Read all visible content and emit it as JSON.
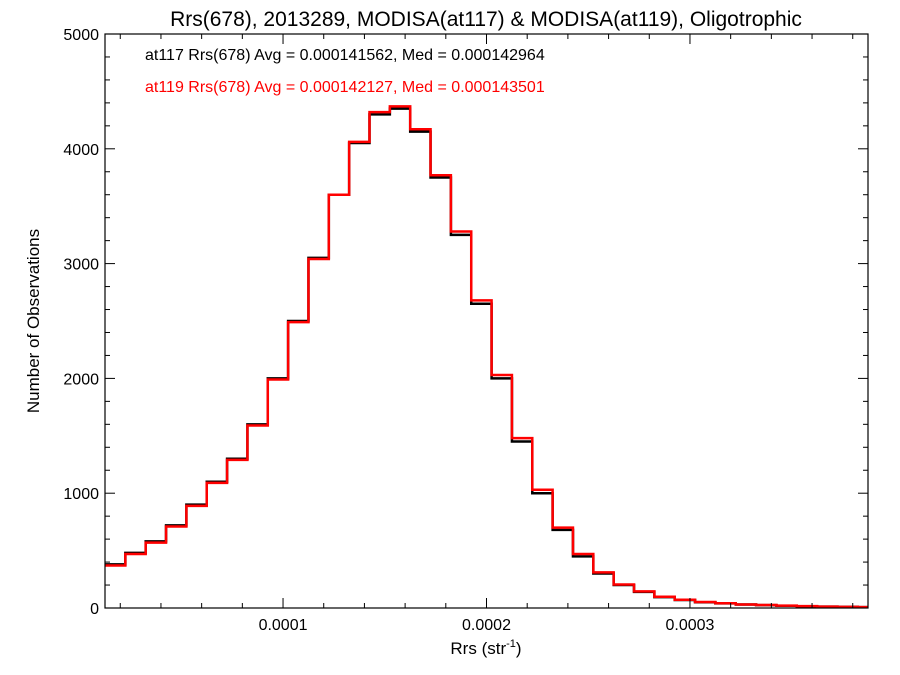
{
  "chart_data": {
    "type": "histogram",
    "title": "Rrs(678), 2013289, MODISA(at117) & MODISA(at119), Oligotrophic",
    "xlabel_main": "Rrs (str",
    "xlabel_sup": "-1",
    "xlabel_close": ")",
    "ylabel": "Number of Observations",
    "xlim": [
      1.25e-05,
      0.0003875
    ],
    "ylim": [
      0,
      5000
    ],
    "x_ticks": [
      0.0001,
      0.0002,
      0.0003
    ],
    "x_tick_labels": [
      "0.0001",
      "0.0002",
      "0.0003"
    ],
    "y_ticks": [
      0,
      1000,
      2000,
      3000,
      4000,
      5000
    ],
    "y_tick_labels": [
      "0",
      "1000",
      "2000",
      "3000",
      "4000",
      "5000"
    ],
    "grid": false,
    "series": [
      {
        "name": "at117",
        "color": "#000000",
        "stat_label": "at117 Rrs(678) Avg = 0.000141562, Med = 0.000142964",
        "x": [
          1.25e-05,
          2.25e-05,
          3.25e-05,
          4.25e-05,
          5.25e-05,
          6.25e-05,
          7.25e-05,
          8.25e-05,
          9.25e-05,
          0.0001025,
          0.0001125,
          0.0001225,
          0.0001325,
          0.0001425,
          0.0001525,
          0.0001625,
          0.0001725,
          0.0001825,
          0.0001925,
          0.0002025,
          0.0002125,
          0.0002225,
          0.0002325,
          0.0002425,
          0.0002525,
          0.0002625,
          0.0002725,
          0.0002825,
          0.0002925,
          0.0003025,
          0.0003125,
          0.0003225,
          0.0003325,
          0.0003425,
          0.0003525,
          0.0003625,
          0.0003725,
          0.0003825
        ],
        "y": [
          380,
          480,
          580,
          720,
          900,
          1100,
          1300,
          1600,
          2000,
          2500,
          3050,
          3600,
          4050,
          4300,
          4350,
          4150,
          3750,
          3250,
          2650,
          2000,
          1450,
          1000,
          680,
          450,
          300,
          200,
          140,
          95,
          70,
          50,
          40,
          30,
          25,
          20,
          15,
          12,
          10,
          8
        ]
      },
      {
        "name": "at119",
        "color": "#ff0000",
        "stat_label": "at119 Rrs(678) Avg = 0.000142127, Med = 0.000143501",
        "x": [
          1.25e-05,
          2.25e-05,
          3.25e-05,
          4.25e-05,
          5.25e-05,
          6.25e-05,
          7.25e-05,
          8.25e-05,
          9.25e-05,
          0.0001025,
          0.0001125,
          0.0001225,
          0.0001325,
          0.0001425,
          0.0001525,
          0.0001625,
          0.0001725,
          0.0001825,
          0.0001925,
          0.0002025,
          0.0002125,
          0.0002225,
          0.0002325,
          0.0002425,
          0.0002525,
          0.0002625,
          0.0002725,
          0.0002825,
          0.0002925,
          0.0003025,
          0.0003125,
          0.0003225,
          0.0003325,
          0.0003425,
          0.0003525,
          0.0003625,
          0.0003725,
          0.0003825
        ],
        "y": [
          370,
          470,
          570,
          710,
          890,
          1090,
          1290,
          1590,
          1990,
          2490,
          3040,
          3600,
          4060,
          4320,
          4370,
          4170,
          3770,
          3280,
          2680,
          2030,
          1480,
          1030,
          700,
          470,
          310,
          205,
          145,
          98,
          72,
          52,
          41,
          31,
          26,
          21,
          16,
          12,
          10,
          8
        ]
      }
    ]
  }
}
